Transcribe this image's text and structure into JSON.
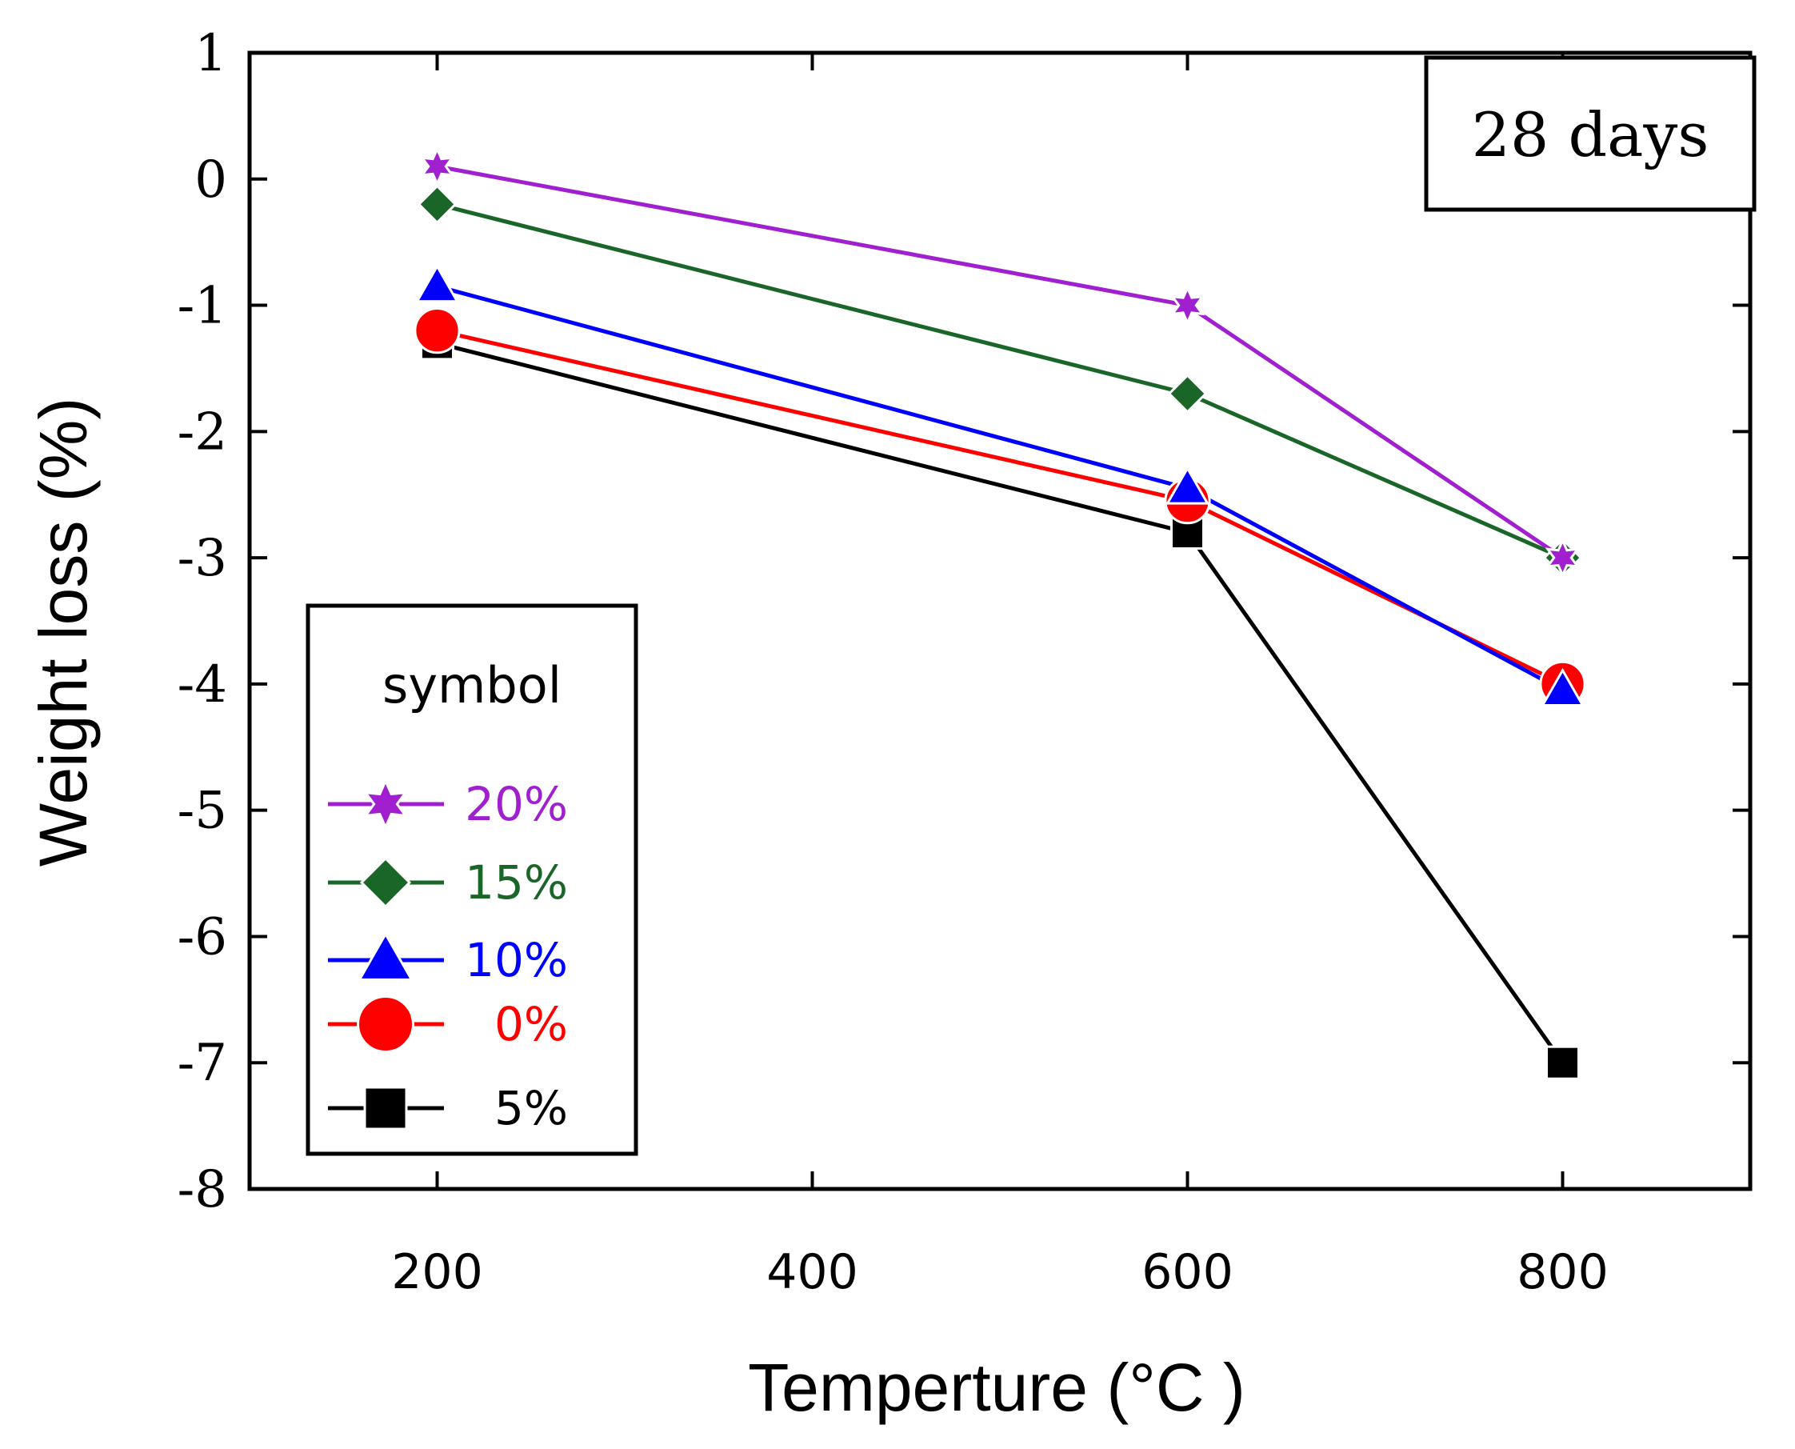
{
  "chart_data": {
    "type": "line",
    "xlabel": "Temperture (°C )",
    "ylabel": "Weight loss (%)",
    "xlim": [
      100,
      900
    ],
    "ylim": [
      -8,
      1
    ],
    "x_ticks": [
      200,
      400,
      600,
      800
    ],
    "y_ticks": [
      1,
      0,
      -1,
      -2,
      -3,
      -4,
      -5,
      -6,
      -7,
      -8
    ],
    "x": [
      200,
      600,
      800
    ],
    "annotation": "28 days",
    "grid": false,
    "legend": {
      "title": "symbol",
      "placement": "left"
    },
    "series": [
      {
        "name": "20%",
        "color": "#a020d0",
        "marker": "star",
        "values": [
          0.1,
          -1.0,
          -3.0
        ]
      },
      {
        "name": "15%",
        "color": "#1a6628",
        "marker": "diamond",
        "values": [
          -0.2,
          -1.7,
          -3.0
        ]
      },
      {
        "name": "10%",
        "color": "#0000ff",
        "marker": "triangle",
        "values": [
          -0.85,
          -2.45,
          -4.05
        ]
      },
      {
        "name": "0%",
        "color": "#ff0000",
        "marker": "circle",
        "values": [
          -1.2,
          -2.55,
          -4.0
        ]
      },
      {
        "name": "5%",
        "color": "#000000",
        "marker": "square",
        "values": [
          -1.3,
          -2.8,
          -7.0
        ]
      }
    ]
  }
}
